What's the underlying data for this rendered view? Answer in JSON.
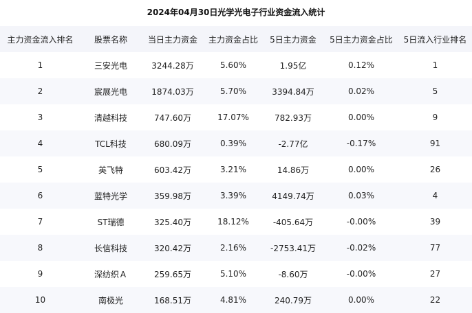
{
  "title": "2024年04月30日光学光电子行业资金流入统计",
  "headers": [
    "主力资金流入排名",
    "股票名称",
    "当日主力资金",
    "主力资金占比",
    "5日主力资金",
    "5日主力资金占比",
    "5日流入行业排名"
  ],
  "rows": [
    [
      "1",
      "三安光电",
      "3244.28万",
      "5.60%",
      "1.95亿",
      "0.12%",
      "1"
    ],
    [
      "2",
      "宸展光电",
      "1874.03万",
      "5.70%",
      "3394.84万",
      "0.02%",
      "5"
    ],
    [
      "3",
      "清越科技",
      "747.60万",
      "17.07%",
      "782.93万",
      "0.00%",
      "9"
    ],
    [
      "4",
      "TCL科技",
      "680.09万",
      "0.39%",
      "-2.77亿",
      "-0.17%",
      "91"
    ],
    [
      "5",
      "英飞特",
      "603.42万",
      "3.21%",
      "14.86万",
      "0.00%",
      "26"
    ],
    [
      "6",
      "蓝特光学",
      "359.98万",
      "3.39%",
      "4149.74万",
      "0.03%",
      "4"
    ],
    [
      "7",
      "ST瑞德",
      "325.40万",
      "18.12%",
      "-405.64万",
      "-0.00%",
      "39"
    ],
    [
      "8",
      "长信科技",
      "320.42万",
      "2.16%",
      "-2753.41万",
      "-0.02%",
      "77"
    ],
    [
      "9",
      "深纺织Ａ",
      "259.65万",
      "5.10%",
      "-8.60万",
      "-0.00%",
      "27"
    ],
    [
      "10",
      "南极光",
      "168.51万",
      "4.81%",
      "240.79万",
      "0.00%",
      "22"
    ]
  ]
}
